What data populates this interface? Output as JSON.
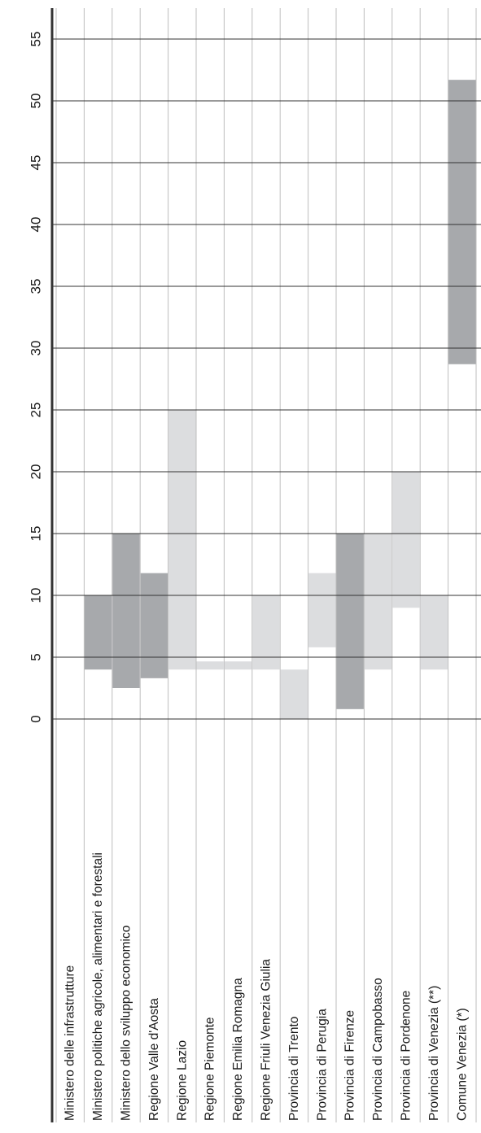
{
  "chart_data": {
    "type": "bar",
    "orientation": "floating-range",
    "title": "",
    "xlabel": "",
    "ylabel": "",
    "ylim": [
      0,
      55
    ],
    "ticks": [
      "0",
      "5",
      "10",
      "15",
      "20",
      "25",
      "30",
      "35",
      "40",
      "45",
      "50",
      "55"
    ],
    "grid": true,
    "categories": [
      "Ministero delle infrastrutture",
      "Ministero politiche agricole, alimentari e forestali",
      "Ministero dello sviluppo economico",
      "Regione Valle d'Aosta",
      "Regione Lazio",
      "Regione Piemonte",
      "Regione Emilia Romagna",
      "Regione Friuli Venezia Giulia",
      "Provincia di Trento",
      "Provincia di Perugia",
      "Provincia di Firenze",
      "Provincia di Campobasso",
      "Provincia di Pordenone",
      "Provincia di Venezia (**)",
      "Comune Venezia (*)"
    ],
    "ranges": [
      null,
      {
        "low": 4,
        "high": 10,
        "shade": "dark"
      },
      {
        "low": 2.5,
        "high": 15,
        "shade": "dark"
      },
      {
        "low": 3.3,
        "high": 11.8,
        "shade": "dark"
      },
      {
        "low": 4,
        "high": 25,
        "shade": "light"
      },
      {
        "low": 4,
        "high": 4,
        "shade": "light"
      },
      {
        "low": 4,
        "high": 4,
        "shade": "light"
      },
      {
        "low": 4,
        "high": 10,
        "shade": "light"
      },
      {
        "low": 0,
        "high": 4,
        "shade": "light"
      },
      {
        "low": 5.8,
        "high": 11.8,
        "shade": "light"
      },
      {
        "low": 0.8,
        "high": 15,
        "shade": "dark"
      },
      {
        "low": 4,
        "high": 15,
        "shade": "light"
      },
      {
        "low": 9,
        "high": 20,
        "shade": "light"
      },
      {
        "low": 4,
        "high": 10,
        "shade": "light"
      },
      {
        "low": 28.7,
        "high": 51.7,
        "shade": "dark"
      }
    ],
    "colors": {
      "dark": "#a7a9ac",
      "light": "#dcdddf"
    }
  }
}
